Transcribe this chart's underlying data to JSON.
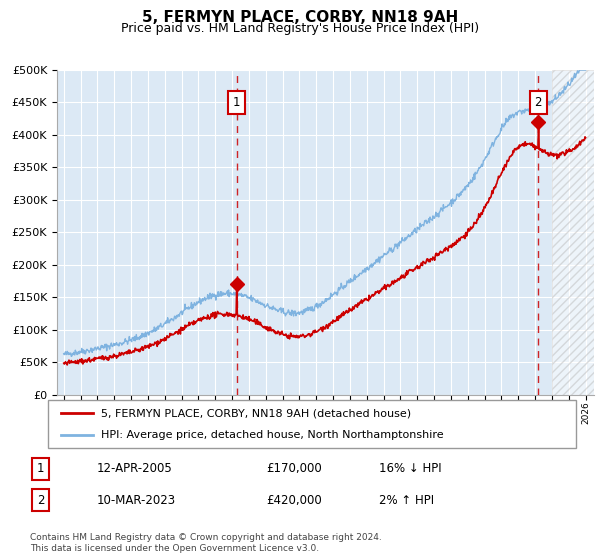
{
  "title": "5, FERMYN PLACE, CORBY, NN18 9AH",
  "subtitle": "Price paid vs. HM Land Registry's House Price Index (HPI)",
  "fig_bg_color": "#f0f0f0",
  "plot_bg_color": "#dce9f5",
  "hpi_line_color": "#7fb3e0",
  "price_line_color": "#cc0000",
  "marker_color": "#cc0000",
  "vline_color": "#cc0000",
  "grid_color": "#ffffff",
  "ylim": [
    0,
    500000
  ],
  "yticks": [
    0,
    50000,
    100000,
    150000,
    200000,
    250000,
    300000,
    350000,
    400000,
    450000,
    500000
  ],
  "sale1_x": 2005.28,
  "sale1_y": 170000,
  "sale1_label": "1",
  "sale2_x": 2023.19,
  "sale2_y": 420000,
  "sale2_label": "2",
  "legend_line1": "5, FERMYN PLACE, CORBY, NN18 9AH (detached house)",
  "legend_line2": "HPI: Average price, detached house, North Northamptonshire",
  "table_row1": [
    "1",
    "12-APR-2005",
    "£170,000",
    "16% ↓ HPI"
  ],
  "table_row2": [
    "2",
    "10-MAR-2023",
    "£420,000",
    "2% ↑ HPI"
  ],
  "footer": "Contains HM Land Registry data © Crown copyright and database right 2024.\nThis data is licensed under the Open Government Licence v3.0.",
  "hatch_start_year": 2024.0,
  "hatch_end_year": 2026.5,
  "xlim_left": 1994.6,
  "xlim_right": 2026.5
}
